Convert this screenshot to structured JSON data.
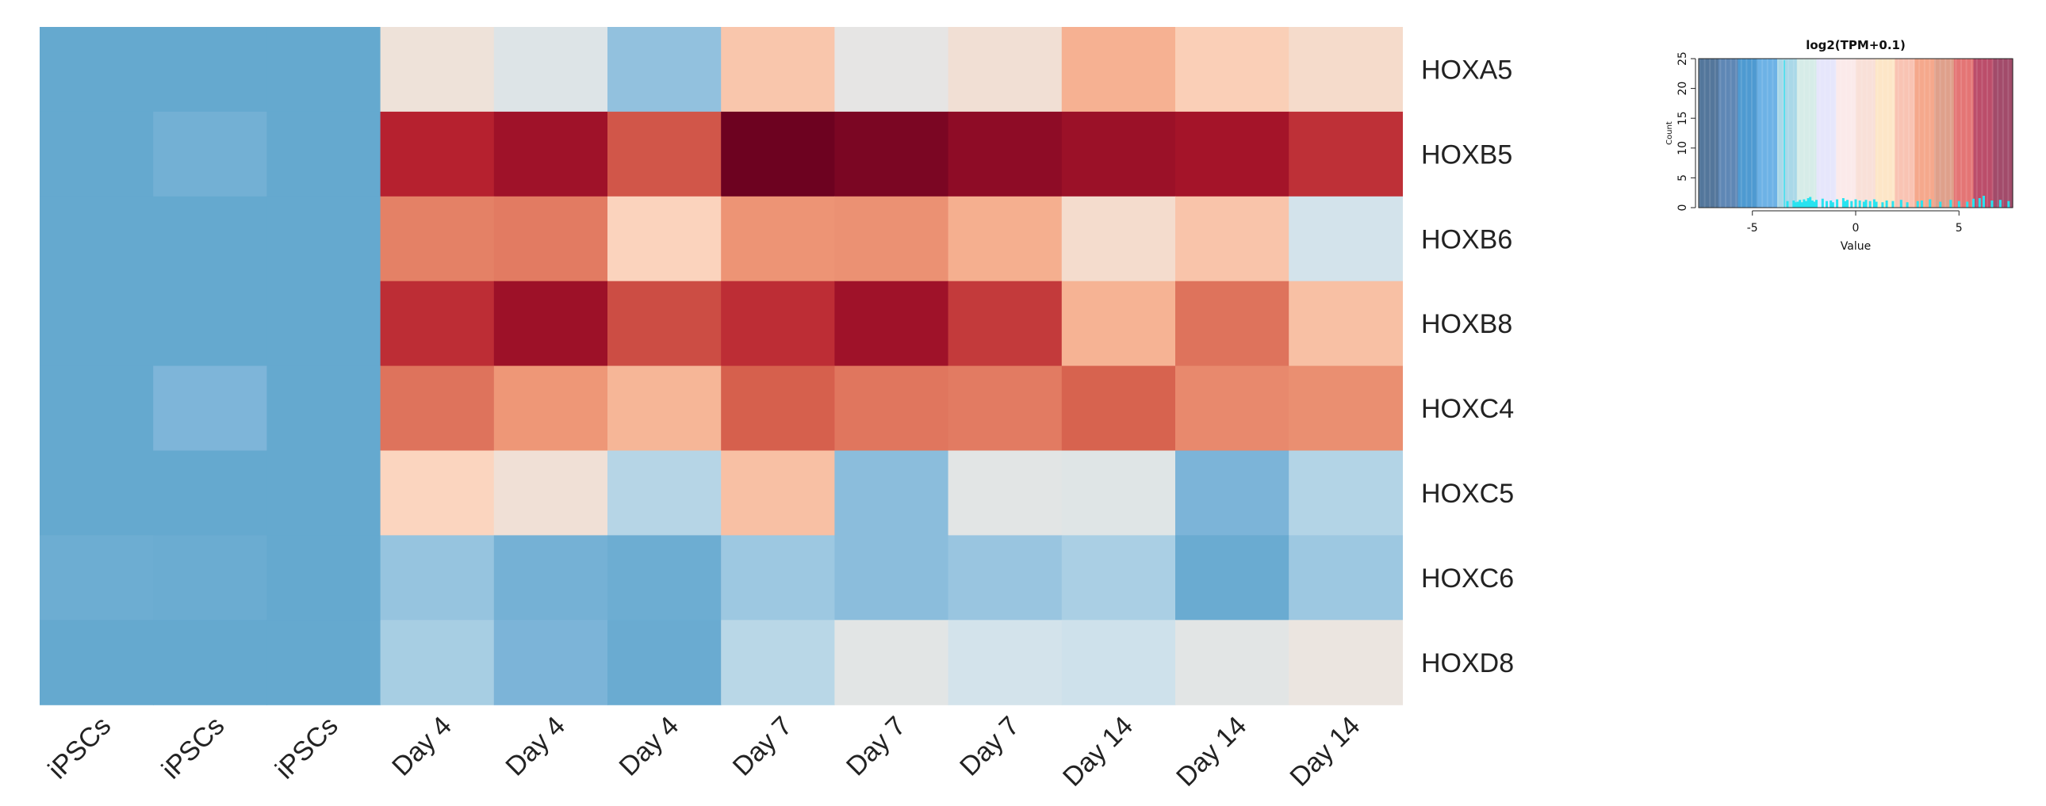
{
  "chart_data": [
    {
      "type": "heatmap",
      "columns": [
        "iPSCs",
        "iPSCs",
        "iPSCs",
        "Day 4",
        "Day 4",
        "Day 4",
        "Day 7",
        "Day 7",
        "Day 7",
        "Day 14",
        "Day 14",
        "Day 14"
      ],
      "rows": [
        "HOXA5",
        "HOXB5",
        "HOXB6",
        "HOXB8",
        "HOXC4",
        "HOXC5",
        "HOXC6",
        "HOXD8"
      ],
      "values": [
        [
          -6.6,
          -6.6,
          -6.6,
          0.4,
          -0.6,
          -3.5,
          2.2,
          -0.2,
          0.6,
          3.2,
          1.8,
          1.0
        ],
        [
          -6.6,
          -5.4,
          -6.6,
          8.3,
          9.6,
          6.6,
          12.3,
          11.5,
          10.5,
          9.8,
          9.3,
          7.8
        ],
        [
          -6.6,
          -6.6,
          -6.6,
          5.1,
          5.3,
          1.6,
          4.4,
          4.5,
          3.3,
          0.9,
          2.3,
          -1.1
        ],
        [
          -6.6,
          -6.6,
          -6.6,
          7.9,
          9.7,
          6.9,
          7.9,
          9.6,
          7.5,
          3.1,
          5.6,
          2.5
        ],
        [
          -6.6,
          -4.4,
          -6.6,
          5.6,
          4.3,
          3.0,
          6.3,
          5.5,
          5.3,
          6.2,
          4.8,
          4.6
        ],
        [
          -6.6,
          -6.6,
          -6.6,
          1.5,
          0.5,
          -2.1,
          2.5,
          -3.8,
          -0.4,
          -0.5,
          -4.6,
          -2.2
        ],
        [
          -5.9,
          -6.1,
          -6.6,
          -3.3,
          -5.2,
          -5.9,
          -3.0,
          -3.8,
          -3.2,
          -2.5,
          -6.2,
          -3.0
        ],
        [
          -6.6,
          -6.6,
          -6.6,
          -2.6,
          -4.6,
          -6.2,
          -2.0,
          -0.4,
          -1.1,
          -1.3,
          -0.4,
          0.1
        ]
      ],
      "color_scale": {
        "low": "#053061",
        "mid": "#f7f7f7",
        "high": "#67001f"
      }
    },
    {
      "type": "bar",
      "title": "log2(TPM+0.1)",
      "xlabel": "Value",
      "ylabel": "Count",
      "xticks": [
        "-5",
        "0",
        "5"
      ],
      "yticks": [
        "0",
        "5",
        "10",
        "15",
        "20",
        "25"
      ],
      "xlim": [
        -7.6,
        7.6
      ],
      "ylim": [
        0,
        25
      ],
      "key_colors": [
        "#53769b",
        "#5e87b5",
        "#4e9ad1",
        "#6db2e6",
        "#a9d8e8",
        "#d6ece8",
        "#e6e6fb",
        "#fbeaea",
        "#f9e0d8",
        "#fde6c7",
        "#f9c3b3",
        "#f5a88c",
        "#dfa08b",
        "#e47575",
        "#bb4d6a",
        "#a24b6a"
      ],
      "histogram_color": "#27e3f0",
      "histogram": [
        {
          "x": -3.3,
          "count": 1.1
        },
        {
          "x": -3.0,
          "count": 1.2
        },
        {
          "x": -2.9,
          "count": 0.9
        },
        {
          "x": -2.8,
          "count": 1.0
        },
        {
          "x": -2.7,
          "count": 1.3
        },
        {
          "x": -2.6,
          "count": 0.9
        },
        {
          "x": -2.5,
          "count": 1.4
        },
        {
          "x": -2.4,
          "count": 1.1
        },
        {
          "x": -2.3,
          "count": 1.6
        },
        {
          "x": -2.2,
          "count": 1.8
        },
        {
          "x": -2.1,
          "count": 1.2
        },
        {
          "x": -2.0,
          "count": 1.0
        },
        {
          "x": -1.9,
          "count": 1.3
        },
        {
          "x": -1.6,
          "count": 1.5
        },
        {
          "x": -1.4,
          "count": 1.1
        },
        {
          "x": -1.2,
          "count": 1.2
        },
        {
          "x": -1.1,
          "count": 0.9
        },
        {
          "x": -0.9,
          "count": 1.4
        },
        {
          "x": -0.6,
          "count": 1.6
        },
        {
          "x": -0.5,
          "count": 1.1
        },
        {
          "x": -0.4,
          "count": 1.3
        },
        {
          "x": -0.2,
          "count": 1.1
        },
        {
          "x": 0.0,
          "count": 1.4
        },
        {
          "x": 0.2,
          "count": 1.2
        },
        {
          "x": 0.4,
          "count": 1.0
        },
        {
          "x": 0.5,
          "count": 1.3
        },
        {
          "x": 0.7,
          "count": 1.1
        },
        {
          "x": 0.9,
          "count": 1.4
        },
        {
          "x": 1.0,
          "count": 1.0
        },
        {
          "x": 1.3,
          "count": 0.9
        },
        {
          "x": 1.5,
          "count": 1.2
        },
        {
          "x": 1.8,
          "count": 1.1
        },
        {
          "x": 2.2,
          "count": 1.3
        },
        {
          "x": 2.5,
          "count": 0.9
        },
        {
          "x": 3.0,
          "count": 1.1
        },
        {
          "x": 3.2,
          "count": 1.2
        },
        {
          "x": 3.6,
          "count": 1.4
        },
        {
          "x": 4.1,
          "count": 1.0
        },
        {
          "x": 4.6,
          "count": 1.3
        },
        {
          "x": 5.0,
          "count": 1.1
        },
        {
          "x": 5.4,
          "count": 1.0
        },
        {
          "x": 5.7,
          "count": 1.5
        },
        {
          "x": 6.0,
          "count": 1.6
        },
        {
          "x": 6.2,
          "count": 2.0
        },
        {
          "x": 6.6,
          "count": 1.2
        },
        {
          "x": 7.0,
          "count": 1.3
        },
        {
          "x": 7.4,
          "count": 1.1
        }
      ]
    }
  ]
}
